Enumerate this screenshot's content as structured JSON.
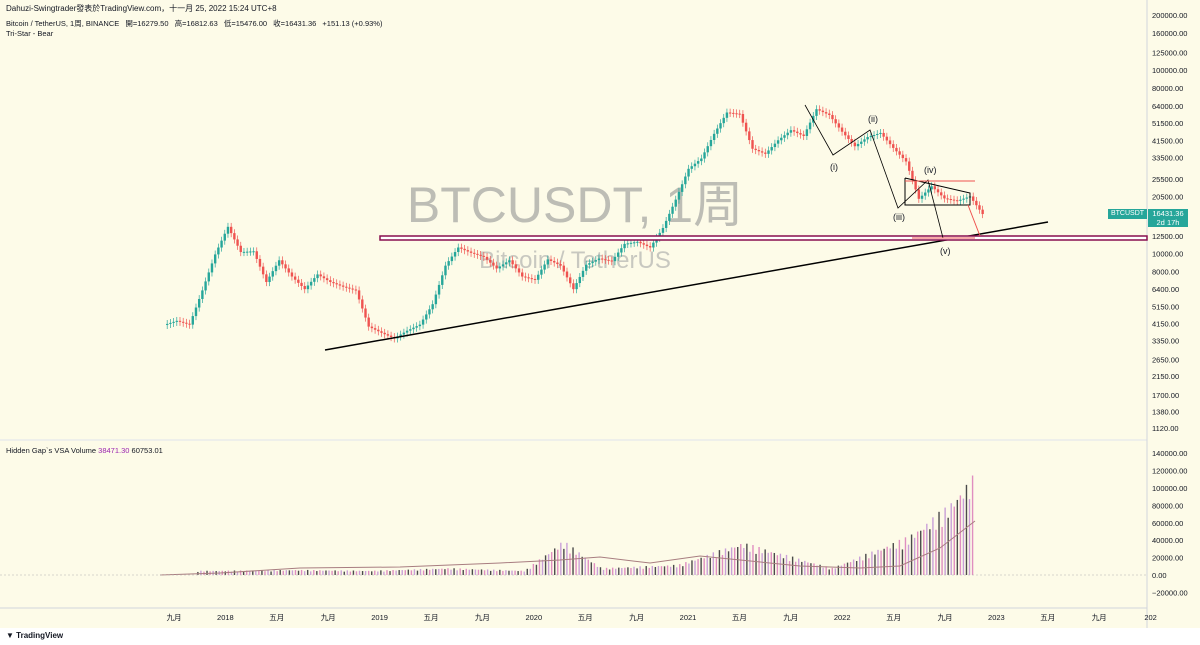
{
  "attribution": "Dahuzi-Swingtrader發表於TradingView.com，十一月 25, 2022 15:24 UTC+8",
  "legend": {
    "symbol": "Bitcoin / TetherUS, 1周, BINANCE",
    "open": "開=16279.50",
    "high": "高=16812.63",
    "low": "低=15476.00",
    "close": "收=16431.36",
    "change": "+151.13 (+0.93%)"
  },
  "indicator_label": "Tri-Star - Bear",
  "watermark": {
    "title": "BTCUSDT, 1周",
    "subtitle": "Bitcoin / TetherUS"
  },
  "price_badge": {
    "symbol": "BTCUSDT",
    "price": "16431.36",
    "countdown": "2d 17h"
  },
  "volume_legend": {
    "name": "Hidden Gap`s VSA Volume",
    "value1": "38471.30",
    "value2": "60753.01"
  },
  "tradingview_logo": "TradingView",
  "colors": {
    "background": "#fdfbe8",
    "up": "#26a69a",
    "down": "#ef5350",
    "support_line": "#880e4f",
    "trend_line": "#000000"
  },
  "chart_data": [
    {
      "type": "candlestick",
      "title": "BTCUSDT, 1周",
      "scale": "log",
      "x_axis": {
        "tick_labels": [
          "九月",
          "2018",
          "五月",
          "九月",
          "2019",
          "五月",
          "九月",
          "2020",
          "五月",
          "九月",
          "2021",
          "五月",
          "九月",
          "2022",
          "五月",
          "九月",
          "2023",
          "五月",
          "九月",
          "202"
        ]
      },
      "y_axis": {
        "tick_labels": [
          "200000.00",
          "160000.00",
          "125000.00",
          "100000.00",
          "80000.00",
          "64000.00",
          "51500.00",
          "41500.00",
          "33500.00",
          "25500.00",
          "20500.00",
          "16431.36",
          "12500.00",
          "10000.00",
          "8000.00",
          "6400.00",
          "5150.00",
          "4150.00",
          "3350.00",
          "2650.00",
          "2150.00",
          "1700.00",
          "1380.00",
          "1120.00"
        ]
      },
      "series": [
        {
          "name": "BTCUSDT",
          "x": [
            "2017-08",
            "2017-09",
            "2017-10",
            "2017-11",
            "2017-12",
            "2018-01",
            "2018-02",
            "2018-03",
            "2018-04",
            "2018-05",
            "2018-06",
            "2018-07",
            "2018-08",
            "2018-09",
            "2018-10",
            "2018-11",
            "2018-12",
            "2019-01",
            "2019-02",
            "2019-03",
            "2019-04",
            "2019-05",
            "2019-06",
            "2019-07",
            "2019-08",
            "2019-09",
            "2019-10",
            "2019-11",
            "2019-12",
            "2020-01",
            "2020-02",
            "2020-03",
            "2020-04",
            "2020-05",
            "2020-06",
            "2020-07",
            "2020-08",
            "2020-09",
            "2020-10",
            "2020-11",
            "2020-12",
            "2021-01",
            "2021-02",
            "2021-03",
            "2021-04",
            "2021-05",
            "2021-06",
            "2021-07",
            "2021-08",
            "2021-09",
            "2021-10",
            "2021-11",
            "2021-12",
            "2022-01",
            "2022-02",
            "2022-03",
            "2022-04",
            "2022-05",
            "2022-06",
            "2022-07",
            "2022-08",
            "2022-09",
            "2022-10",
            "2022-11"
          ],
          "close": [
            4300,
            4100,
            6300,
            9900,
            14000,
            10200,
            10300,
            7000,
            9200,
            7500,
            6400,
            7700,
            7000,
            6600,
            6300,
            4000,
            3700,
            3450,
            3800,
            4100,
            5300,
            8600,
            10800,
            10100,
            9600,
            8300,
            9200,
            7500,
            7200,
            9300,
            8600,
            6400,
            8700,
            9400,
            9100,
            11300,
            11600,
            10800,
            13800,
            19700,
            29000,
            33000,
            45000,
            58800,
            57700,
            37300,
            35000,
            41500,
            47100,
            43800,
            61300,
            57000,
            46200,
            38500,
            43200,
            45500,
            37700,
            31800,
            19900,
            23300,
            20000,
            19400,
            20500,
            16431.36
          ]
        }
      ],
      "annotations": [
        "(i)",
        "(ii)",
        "(iii)",
        "(iv)",
        "(v)"
      ]
    },
    {
      "type": "bar",
      "title": "Hidden Gap`s VSA Volume",
      "y_axis": {
        "tick_labels": [
          "140000.00",
          "120000.00",
          "100000.00",
          "80000.00",
          "60000.00",
          "40000.00",
          "20000.00",
          "0.00",
          "−20000.00"
        ]
      },
      "series": [
        {
          "name": "Volume",
          "x": [
            "2017-12",
            "2018-06",
            "2018-12",
            "2019-06",
            "2019-12",
            "2020-03",
            "2020-06",
            "2020-12",
            "2021-05",
            "2021-12",
            "2022-06",
            "2022-09",
            "2022-11"
          ],
          "values": [
            5000,
            6000,
            5000,
            8000,
            5000,
            40000,
            8000,
            12000,
            38000,
            8000,
            45000,
            80000,
            115000
          ]
        }
      ]
    }
  ]
}
